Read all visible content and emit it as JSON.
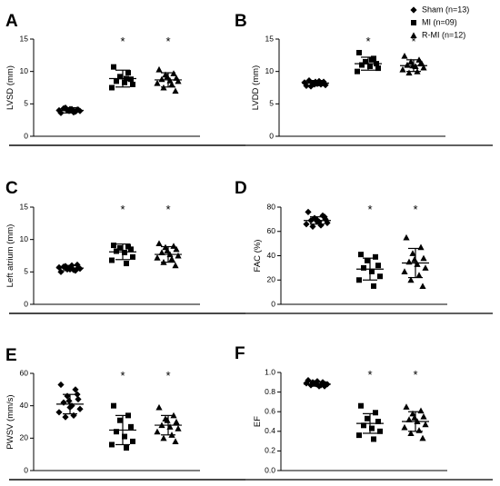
{
  "legend": [
    {
      "label": "Sham (n=13)",
      "marker": "diamond"
    },
    {
      "label": "MI (n=09)",
      "marker": "square"
    },
    {
      "label": "R-MI (n=12)",
      "marker": "triangle"
    }
  ],
  "chart_data": [
    {
      "type": "scatter",
      "panel": "A",
      "ylabel": "LVSD (mm)",
      "ylim": [
        0,
        15
      ],
      "yticks": [
        0,
        5,
        10,
        15
      ],
      "groups": [
        {
          "name": "Sham",
          "marker": "diamond",
          "mean": 4.0,
          "sd": 0.4,
          "significant": false,
          "values": [
            3.6,
            3.8,
            4.0,
            4.1,
            4.3,
            4.2,
            3.9,
            4.0,
            3.7,
            4.4,
            4.1,
            3.9,
            4.2
          ]
        },
        {
          "name": "MI",
          "marker": "square",
          "mean": 8.9,
          "sd": 1.3,
          "significant": true,
          "values": [
            10.7,
            9.8,
            9.2,
            8.8,
            8.5,
            8.3,
            8.0,
            7.5,
            8.9
          ]
        },
        {
          "name": "R-MI",
          "marker": "triangle",
          "mean": 8.7,
          "sd": 1.1,
          "significant": true,
          "values": [
            10.3,
            9.7,
            9.5,
            9.0,
            8.8,
            8.6,
            8.5,
            8.2,
            8.0,
            7.5,
            7.0,
            9.2
          ]
        }
      ]
    },
    {
      "type": "scatter",
      "panel": "B",
      "ylabel": "LVDD (mm)",
      "ylim": [
        0,
        15
      ],
      "yticks": [
        0,
        5,
        10,
        15
      ],
      "groups": [
        {
          "name": "Sham",
          "marker": "diamond",
          "mean": 8.2,
          "sd": 0.4,
          "significant": false,
          "values": [
            7.8,
            8.0,
            8.2,
            8.4,
            8.6,
            8.1,
            7.9,
            8.3,
            8.5,
            7.7,
            8.2,
            8.0,
            8.4
          ]
        },
        {
          "name": "MI",
          "marker": "square",
          "mean": 11.2,
          "sd": 1.0,
          "significant": true,
          "values": [
            12.9,
            12.0,
            11.5,
            11.2,
            11.0,
            10.8,
            10.5,
            10.0,
            11.8
          ]
        },
        {
          "name": "R-MI",
          "marker": "triangle",
          "mean": 10.9,
          "sd": 0.9,
          "significant": true,
          "values": [
            12.4,
            11.8,
            11.5,
            11.2,
            11.0,
            10.8,
            10.6,
            10.3,
            10.0,
            9.8,
            11.3,
            10.9
          ]
        }
      ]
    },
    {
      "type": "scatter",
      "panel": "C",
      "ylabel": "Left atrium (mm)",
      "ylim": [
        0,
        15
      ],
      "yticks": [
        0,
        5,
        10,
        15
      ],
      "groups": [
        {
          "name": "Sham",
          "marker": "diamond",
          "mean": 5.6,
          "sd": 0.4,
          "significant": false,
          "values": [
            5.0,
            5.2,
            5.4,
            5.6,
            5.8,
            6.0,
            5.5,
            5.7,
            5.3,
            5.9,
            6.1,
            5.6,
            5.4
          ]
        },
        {
          "name": "MI",
          "marker": "square",
          "mean": 8.1,
          "sd": 1.2,
          "significant": true,
          "values": [
            9.1,
            8.9,
            8.7,
            8.5,
            8.2,
            8.0,
            7.3,
            6.8,
            6.3
          ]
        },
        {
          "name": "R-MI",
          "marker": "triangle",
          "mean": 7.7,
          "sd": 1.2,
          "significant": true,
          "values": [
            9.4,
            9.0,
            8.8,
            8.5,
            8.0,
            7.7,
            7.5,
            7.2,
            7.0,
            6.5,
            6.0,
            8.3
          ]
        }
      ]
    },
    {
      "type": "scatter",
      "panel": "D",
      "ylabel": "FAC (%)",
      "ylim": [
        0,
        80
      ],
      "yticks": [
        0,
        20,
        40,
        60,
        80
      ],
      "groups": [
        {
          "name": "Sham",
          "marker": "diamond",
          "mean": 69,
          "sd": 3,
          "significant": false,
          "values": [
            76,
            73,
            71,
            70,
            69,
            68,
            67,
            66,
            65,
            64,
            72,
            70,
            68
          ]
        },
        {
          "name": "MI",
          "marker": "square",
          "mean": 29,
          "sd": 9,
          "significant": true,
          "values": [
            41,
            39,
            36,
            32,
            30,
            27,
            23,
            20,
            15
          ]
        },
        {
          "name": "R-MI",
          "marker": "triangle",
          "mean": 34,
          "sd": 12,
          "significant": true,
          "values": [
            55,
            47,
            42,
            38,
            35,
            33,
            30,
            27,
            24,
            20,
            15,
            37
          ]
        }
      ]
    },
    {
      "type": "scatter",
      "panel": "E",
      "ylabel": "PWSV (mm/s)",
      "ylim": [
        0,
        60
      ],
      "yticks": [
        0,
        20,
        40,
        60
      ],
      "groups": [
        {
          "name": "Sham",
          "marker": "diamond",
          "mean": 41,
          "sd": 6,
          "significant": false,
          "values": [
            53,
            50,
            46,
            44,
            42,
            40,
            38,
            36,
            34,
            33,
            47,
            43,
            39
          ]
        },
        {
          "name": "MI",
          "marker": "square",
          "mean": 25,
          "sd": 9,
          "significant": true,
          "values": [
            40,
            34,
            31,
            27,
            24,
            21,
            18,
            16,
            14
          ]
        },
        {
          "name": "R-MI",
          "marker": "triangle",
          "mean": 28,
          "sd": 6,
          "significant": true,
          "values": [
            39,
            34,
            32,
            30,
            28,
            27,
            26,
            24,
            22,
            20,
            18,
            31
          ]
        }
      ]
    },
    {
      "type": "scatter",
      "panel": "F",
      "ylabel": "EF",
      "ylim": [
        0,
        1.0
      ],
      "yticks": [
        0.0,
        0.2,
        0.4,
        0.6,
        0.8,
        1.0
      ],
      "ytick_labels": [
        "0.0",
        "0.2",
        "0.4",
        "0.6",
        "0.8",
        "1.0"
      ],
      "groups": [
        {
          "name": "Sham",
          "marker": "diamond",
          "mean": 0.88,
          "sd": 0.02,
          "significant": false,
          "values": [
            0.92,
            0.9,
            0.89,
            0.88,
            0.87,
            0.86,
            0.88,
            0.89,
            0.87,
            0.9,
            0.86,
            0.88,
            0.91
          ]
        },
        {
          "name": "MI",
          "marker": "square",
          "mean": 0.48,
          "sd": 0.1,
          "significant": true,
          "values": [
            0.66,
            0.59,
            0.53,
            0.5,
            0.46,
            0.43,
            0.4,
            0.36,
            0.32
          ]
        },
        {
          "name": "R-MI",
          "marker": "triangle",
          "mean": 0.5,
          "sd": 0.1,
          "significant": true,
          "values": [
            0.65,
            0.61,
            0.58,
            0.55,
            0.52,
            0.5,
            0.47,
            0.44,
            0.41,
            0.38,
            0.33,
            0.54
          ]
        }
      ]
    }
  ]
}
